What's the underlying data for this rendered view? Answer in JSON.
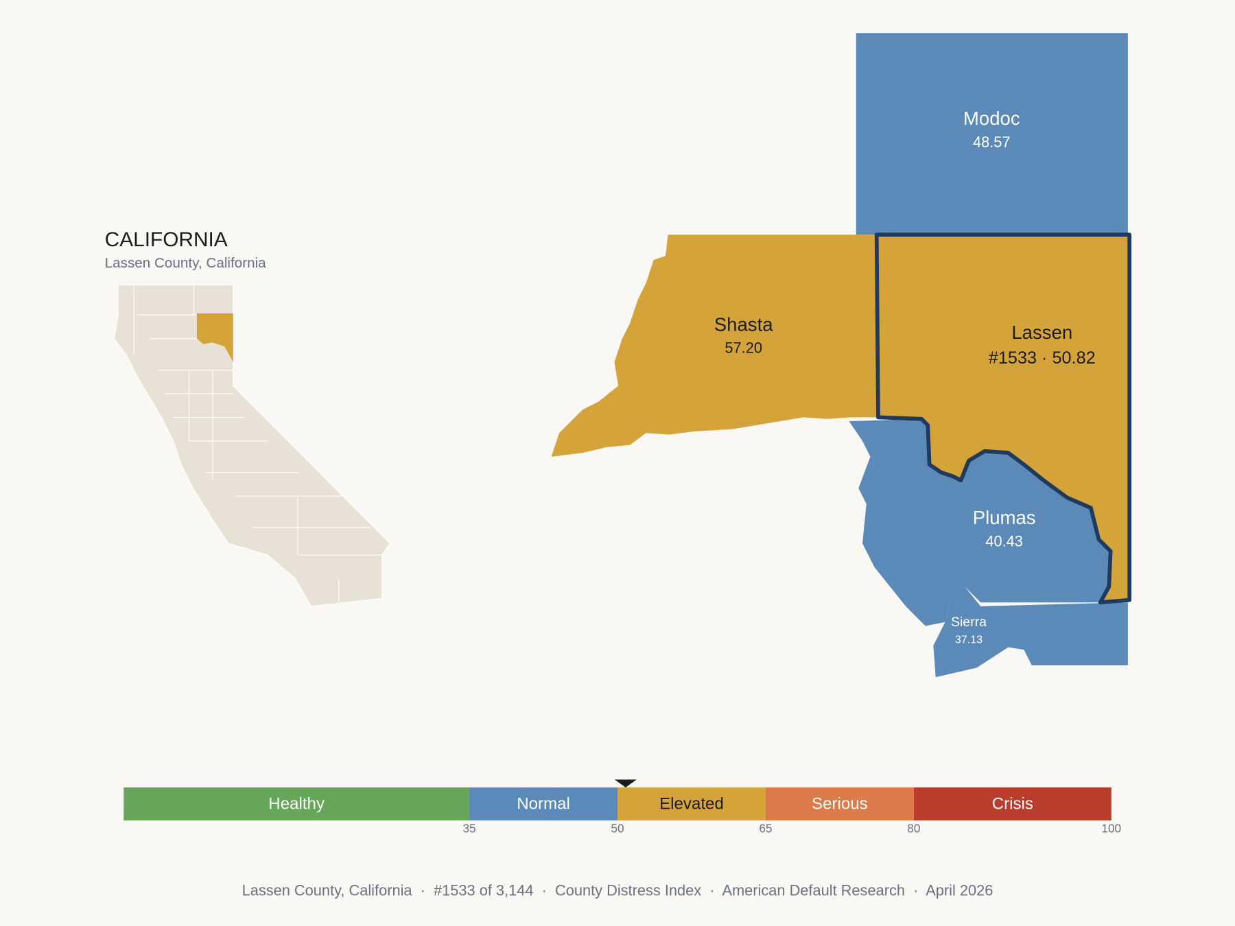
{
  "inset": {
    "title": "CALIFORNIA",
    "subtitle": "Lassen County, California"
  },
  "counties": [
    {
      "name": "Modoc",
      "label": "48.57",
      "color": "#5b8ab9"
    },
    {
      "name": "Shasta",
      "label": "57.20",
      "color": "#d4a43b"
    },
    {
      "name": "Lassen",
      "label": "#1533 · 50.82",
      "color": "#d4a43b"
    },
    {
      "name": "Plumas",
      "label": "40.43",
      "color": "#5b8ab9"
    },
    {
      "name": "Sierra",
      "label": "37.13",
      "color": "#5b8ab9"
    }
  ],
  "scale": {
    "range": [
      0,
      100
    ],
    "ticks": [
      35,
      50,
      65,
      80,
      100
    ],
    "bands": [
      {
        "label": "Healthy",
        "color": "#66a659"
      },
      {
        "label": "Normal",
        "color": "#5b8ab9"
      },
      {
        "label": "Elevated",
        "color": "#d4a43b"
      },
      {
        "label": "Serious",
        "color": "#dd7a4a"
      },
      {
        "label": "Crisis",
        "color": "#b93c2c"
      }
    ],
    "marker": 50.82
  },
  "footer": "Lassen County, California  ·  #1533 of 3,144  ·  County Distress Index  ·  American Default Research  ·  April 2026"
}
